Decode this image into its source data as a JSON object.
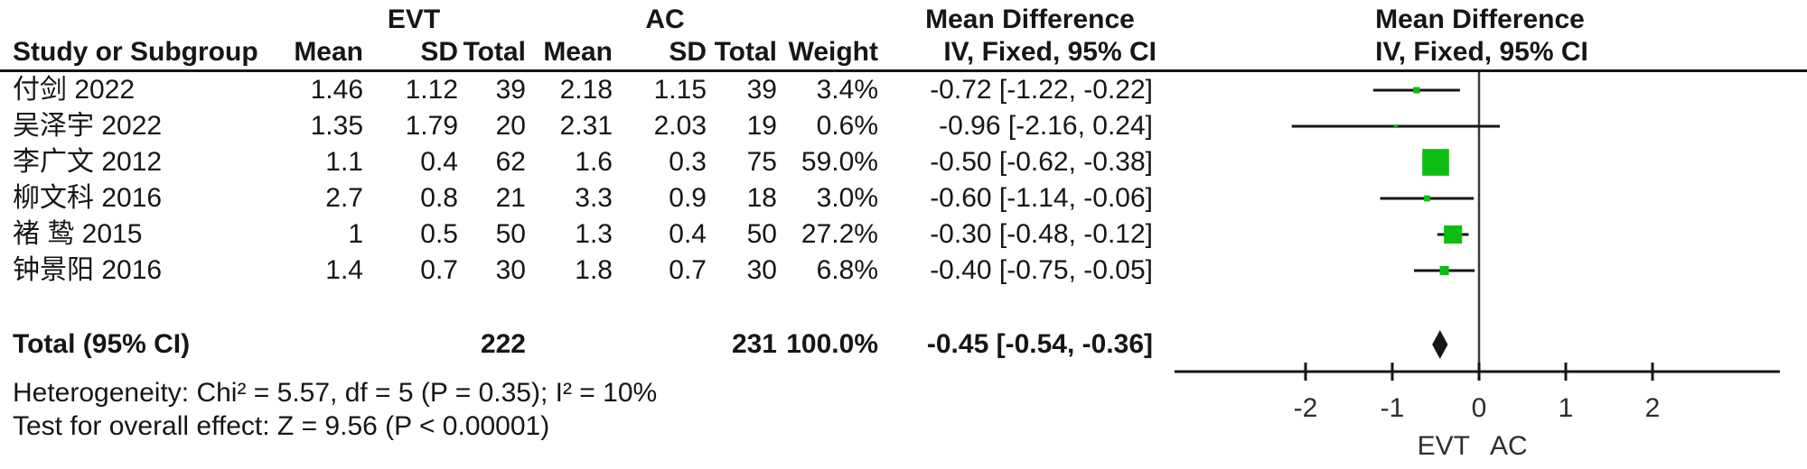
{
  "header": {
    "group1": "EVT",
    "group2": "AC",
    "effect_col_title": "Mean Difference",
    "plot_col_title": "Mean Difference",
    "effect_col_sub": "IV, Fixed, 95% CI",
    "plot_col_sub": "IV, Fixed, 95% CI",
    "columns": {
      "study": "Study or Subgroup",
      "mean": "Mean",
      "sd": "SD",
      "total": "Total",
      "weight": "Weight"
    }
  },
  "chart_data": {
    "type": "forest",
    "effect_measure": "Mean Difference",
    "model": "IV, Fixed, 95% CI",
    "marker_color": "#0cbd12",
    "line_color": "#161616",
    "studies": [
      {
        "name": "付剑 2022",
        "evt_mean": "1.46",
        "evt_sd": "1.12",
        "evt_total": "39",
        "ac_mean": "2.18",
        "ac_sd": "1.15",
        "ac_total": "39",
        "weight": "3.4%",
        "weight_value": 3.4,
        "md": -0.72,
        "ci_low": -1.22,
        "ci_high": -0.22,
        "ci_label": "-0.72 [-1.22, -0.22]"
      },
      {
        "name": "吴泽宇 2022",
        "evt_mean": "1.35",
        "evt_sd": "1.79",
        "evt_total": "20",
        "ac_mean": "2.31",
        "ac_sd": "2.03",
        "ac_total": "19",
        "weight": "0.6%",
        "weight_value": 0.6,
        "md": -0.96,
        "ci_low": -2.16,
        "ci_high": 0.24,
        "ci_label": "-0.96 [-2.16, 0.24]"
      },
      {
        "name": "李广文 2012",
        "evt_mean": "1.1",
        "evt_sd": "0.4",
        "evt_total": "62",
        "ac_mean": "1.6",
        "ac_sd": "0.3",
        "ac_total": "75",
        "weight": "59.0%",
        "weight_value": 59.0,
        "md": -0.5,
        "ci_low": -0.62,
        "ci_high": -0.38,
        "ci_label": "-0.50 [-0.62, -0.38]"
      },
      {
        "name": "柳文科 2016",
        "evt_mean": "2.7",
        "evt_sd": "0.8",
        "evt_total": "21",
        "ac_mean": "3.3",
        "ac_sd": "0.9",
        "ac_total": "18",
        "weight": "3.0%",
        "weight_value": 3.0,
        "md": -0.6,
        "ci_low": -1.14,
        "ci_high": -0.06,
        "ci_label": "-0.60 [-1.14, -0.06]"
      },
      {
        "name": "褚 鸷 2015",
        "evt_mean": "1",
        "evt_sd": "0.5",
        "evt_total": "50",
        "ac_mean": "1.3",
        "ac_sd": "0.4",
        "ac_total": "50",
        "weight": "27.2%",
        "weight_value": 27.2,
        "md": -0.3,
        "ci_low": -0.48,
        "ci_high": -0.12,
        "ci_label": "-0.30 [-0.48, -0.12]"
      },
      {
        "name": "钟景阳 2016",
        "evt_mean": "1.4",
        "evt_sd": "0.7",
        "evt_total": "30",
        "ac_mean": "1.8",
        "ac_sd": "0.7",
        "ac_total": "30",
        "weight": "6.8%",
        "weight_value": 6.8,
        "md": -0.4,
        "ci_low": -0.75,
        "ci_high": -0.05,
        "ci_label": "-0.40 [-0.75, -0.05]"
      }
    ],
    "total": {
      "label": "Total (95% CI)",
      "evt_total": "222",
      "ac_total": "231",
      "weight": "100.0%",
      "md": -0.45,
      "ci_low": -0.54,
      "ci_high": -0.36,
      "ci_label": "-0.45 [-0.54, -0.36]"
    },
    "heterogeneity": "Heterogeneity: Chi² = 5.57, df = 5 (P = 0.35); I² = 10%",
    "overall_effect": "Test for overall effect: Z = 9.56 (P < 0.00001)",
    "axis": {
      "ticks": [
        -2,
        -1,
        0,
        1,
        2
      ],
      "tick_labels": [
        "-2",
        "-1",
        "0",
        "1",
        "2"
      ],
      "min": -3.5,
      "max": 3.5,
      "favours_left": "EVT",
      "favours_right": "AC"
    }
  }
}
